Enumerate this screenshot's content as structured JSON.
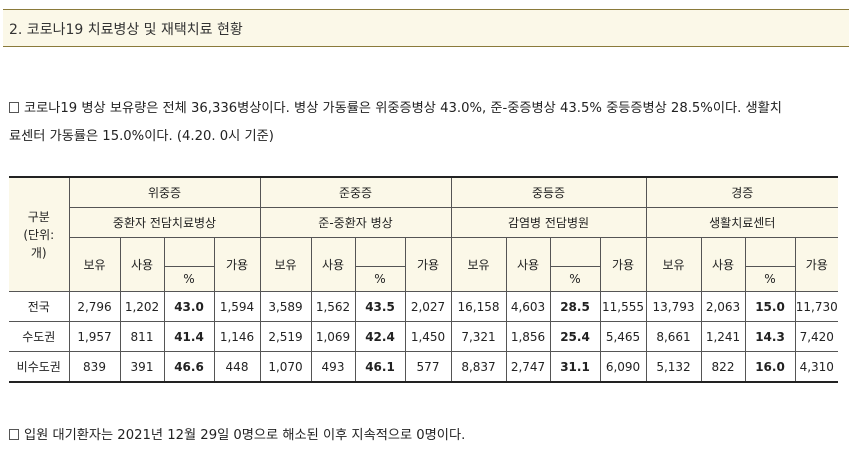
{
  "section": {
    "title": "2. 코로나19 치료병상 및 재택치료 현황"
  },
  "para1": {
    "line1": "코로나19 병상 보유량은 전체 36,336병상이다. 병상 가동률은 위중증병상 43.0%, 준-중증병상 43.5% 중등증병상 28.5%이다. 생활치",
    "line2": "료센터 가동률은 15.0%이다. (4.20. 0시 기준)"
  },
  "table": {
    "corner": {
      "l1": "구분",
      "l2": "(단위:",
      "l3": "개)"
    },
    "groups": [
      {
        "name": "위중증",
        "sub": "중환자 전담치료병상"
      },
      {
        "name": "준중증",
        "sub": "준-중환자 병상"
      },
      {
        "name": "중등증",
        "sub": "감염병 전담병원"
      },
      {
        "name": "경증",
        "sub": "생활치료센터"
      }
    ],
    "cols": {
      "own": "보유",
      "use": "사용",
      "pct": "%",
      "avail": "가용"
    },
    "rows": [
      {
        "region": "전국",
        "v": [
          "2,796",
          "1,202",
          "43.0",
          "1,594",
          "3,589",
          "1,562",
          "43.5",
          "2,027",
          "16,158",
          "4,603",
          "28.5",
          "11,555",
          "13,793",
          "2,063",
          "15.0",
          "11,730"
        ]
      },
      {
        "region": "수도권",
        "v": [
          "1,957",
          "811",
          "41.4",
          "1,146",
          "2,519",
          "1,069",
          "42.4",
          "1,450",
          "7,321",
          "1,856",
          "25.4",
          "5,465",
          "8,661",
          "1,241",
          "14.3",
          "7,420"
        ]
      },
      {
        "region": "비수도권",
        "v": [
          "839",
          "391",
          "46.6",
          "448",
          "1,070",
          "493",
          "46.1",
          "577",
          "8,837",
          "2,747",
          "31.1",
          "6,090",
          "5,132",
          "822",
          "16.0",
          "4,310"
        ]
      }
    ]
  },
  "para2": {
    "text": "입원 대기환자는 2021년 12월 29일 0명으로 해소된 이후 지속적으로 0명이다."
  }
}
